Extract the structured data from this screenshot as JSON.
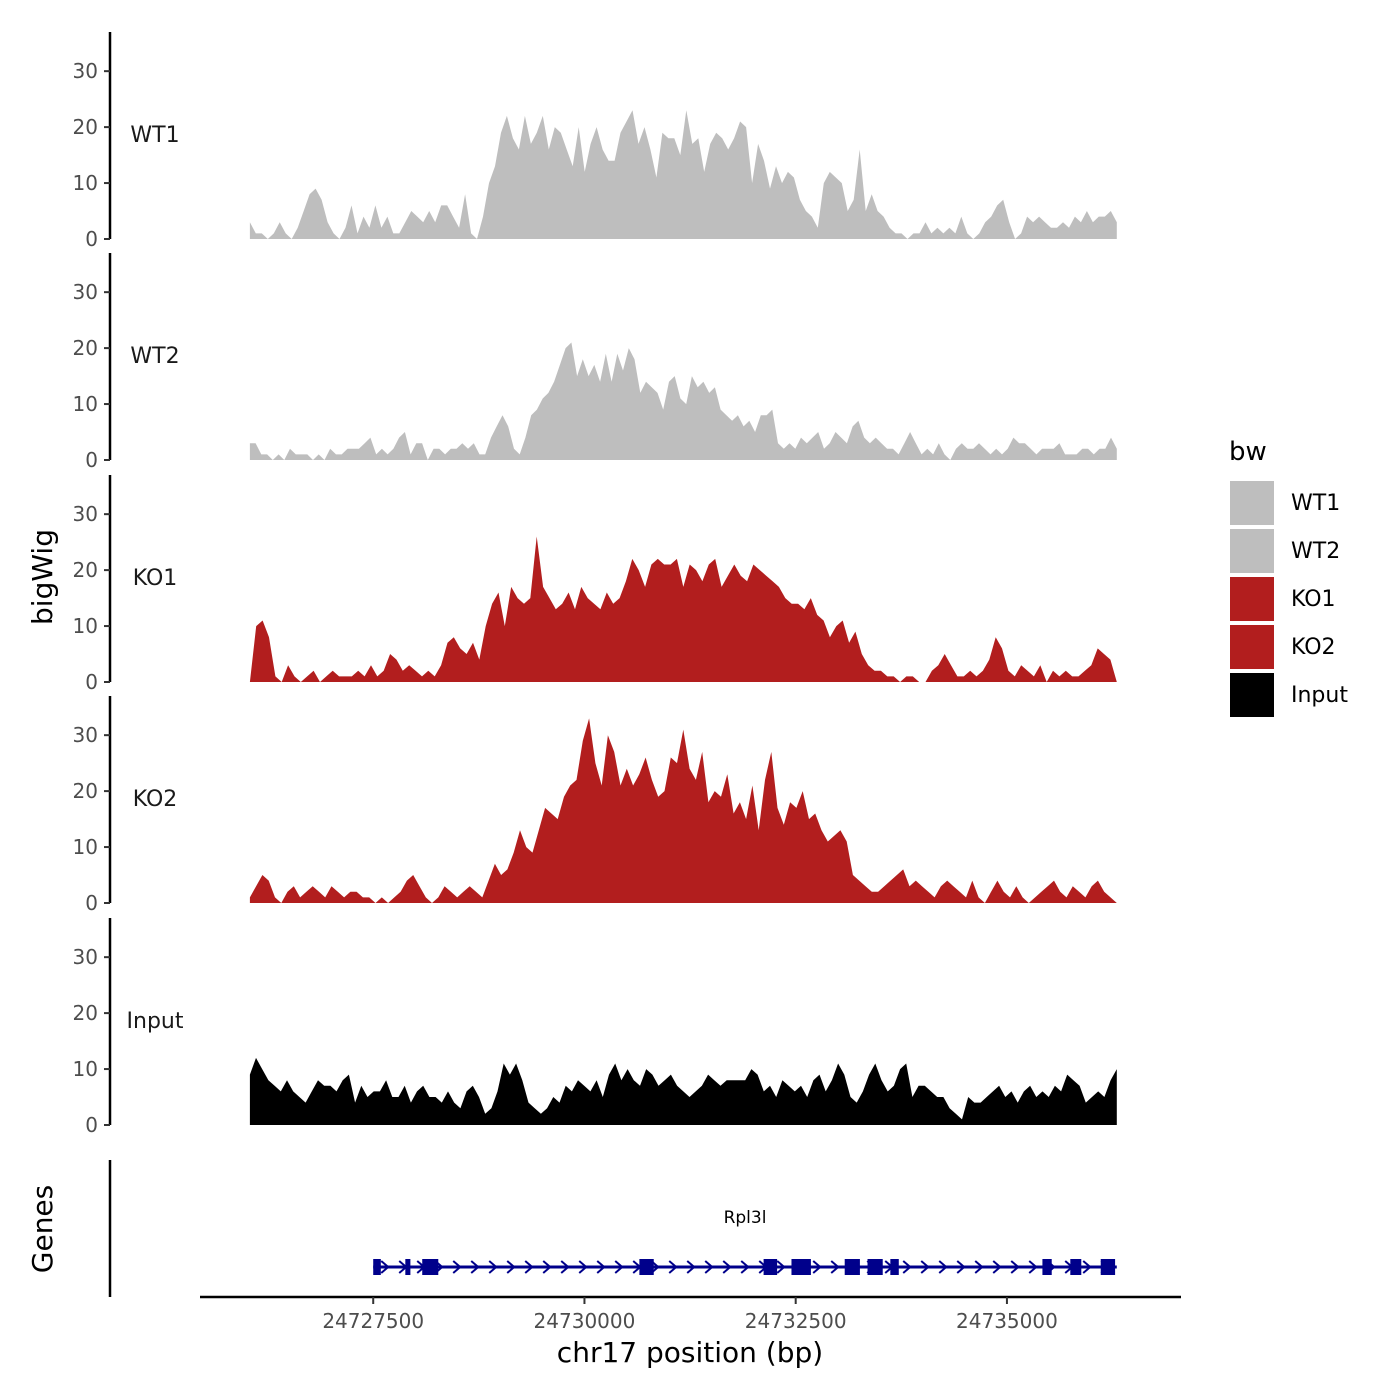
{
  "chart_data": {
    "type": "area",
    "chromosome": "chr17",
    "xlabel": "chr17 position (bp)",
    "ylabel": "bigWig",
    "xlim": [
      24725450,
      24737060
    ],
    "x_ticks": [
      24727500,
      24730000,
      24732500,
      24735000
    ],
    "x_tick_labels": [
      "24727500",
      "24730000",
      "24732500",
      "24735000"
    ],
    "ylim": [
      0,
      37
    ],
    "y_ticks": [
      0,
      10,
      20,
      30
    ],
    "y_tick_labels": [
      "0",
      "10",
      "20",
      "30"
    ],
    "track_start": 24726040,
    "track_end": 24736300,
    "legend": {
      "title": "bw",
      "position": "right",
      "entries": [
        {
          "label": "WT1",
          "color": "#bebebe"
        },
        {
          "label": "WT2",
          "color": "#bebebe"
        },
        {
          "label": "KO1",
          "color": "#b21e1e"
        },
        {
          "label": "KO2",
          "color": "#b21e1e"
        },
        {
          "label": "Input",
          "color": "#000000"
        }
      ]
    },
    "series": [
      {
        "name": "WT1",
        "color": "#bebebe",
        "values": [
          3,
          1,
          1,
          0,
          1,
          3,
          1,
          0,
          2,
          5,
          8,
          9,
          7,
          3,
          1,
          0,
          2,
          6,
          1,
          4,
          2,
          6,
          2,
          4,
          1,
          1,
          3,
          5,
          4,
          3,
          5,
          3,
          6,
          6,
          4,
          2,
          8,
          1,
          0,
          4,
          10,
          13,
          19,
          22,
          18,
          16,
          22,
          17,
          19,
          22,
          16,
          20,
          19,
          16,
          13,
          20,
          12,
          17,
          20,
          16,
          14,
          14,
          19,
          21,
          23,
          17,
          20,
          16,
          11,
          19,
          18,
          18,
          15,
          23,
          17,
          18,
          12,
          17,
          19,
          18,
          16,
          18,
          21,
          20,
          10,
          17,
          14,
          9,
          13,
          10,
          12,
          11,
          7,
          5,
          4,
          2,
          10,
          12,
          11,
          10,
          5,
          7,
          16,
          5,
          8,
          5,
          4,
          2,
          1,
          1,
          0,
          1,
          1,
          3,
          1,
          2,
          1,
          2,
          1,
          4,
          1,
          0,
          1,
          3,
          4,
          6,
          7,
          3,
          0,
          1,
          4,
          3,
          4,
          3,
          2,
          2,
          3,
          2,
          4,
          3,
          5,
          3,
          4,
          4,
          5,
          3
        ]
      },
      {
        "name": "WT2",
        "color": "#bebebe",
        "values": [
          3,
          3,
          1,
          1,
          0,
          1,
          0,
          2,
          1,
          1,
          1,
          0,
          1,
          0,
          2,
          1,
          1,
          2,
          2,
          2,
          3,
          4,
          1,
          2,
          1,
          2,
          4,
          5,
          1,
          3,
          3,
          0,
          2,
          2,
          1,
          2,
          2,
          3,
          2,
          3,
          1,
          1,
          4,
          6,
          8,
          6,
          2,
          1,
          4,
          8,
          9,
          11,
          12,
          14,
          17,
          20,
          21,
          15,
          18,
          15,
          17,
          14,
          19,
          14,
          19,
          16,
          20,
          18,
          12,
          14,
          13,
          12,
          9,
          14,
          15,
          11,
          10,
          15,
          13,
          14,
          12,
          13,
          9,
          8,
          7,
          8,
          6,
          7,
          5,
          8,
          8,
          9,
          3,
          2,
          3,
          2,
          4,
          3,
          4,
          5,
          2,
          3,
          5,
          4,
          3,
          6,
          7,
          4,
          3,
          4,
          3,
          2,
          2,
          1,
          3,
          5,
          3,
          1,
          2,
          1,
          3,
          1,
          0,
          2,
          3,
          2,
          2,
          3,
          2,
          1,
          2,
          1,
          2,
          4,
          3,
          3,
          2,
          1,
          2,
          2,
          2,
          3,
          1,
          1,
          1,
          2,
          2,
          1,
          2,
          2,
          4,
          2
        ]
      },
      {
        "name": "KO1",
        "color": "#b21e1e",
        "values": [
          0,
          10,
          11,
          8,
          1,
          0,
          3,
          1,
          0,
          1,
          2,
          0,
          1,
          2,
          1,
          1,
          1,
          2,
          1,
          3,
          1,
          2,
          5,
          4,
          2,
          3,
          2,
          1,
          2,
          1,
          3,
          7,
          8,
          6,
          5,
          7,
          4,
          10,
          14,
          16,
          10,
          17,
          15,
          14,
          15,
          26,
          17,
          15,
          13,
          14,
          16,
          13,
          17,
          15,
          14,
          13,
          16,
          14,
          15,
          18,
          22,
          20,
          17,
          21,
          22,
          21,
          21,
          22,
          17,
          21,
          20,
          18,
          21,
          22,
          17,
          19,
          21,
          19,
          18,
          21,
          20,
          19,
          18,
          17,
          15,
          14,
          14,
          13,
          15,
          12,
          11,
          8,
          10,
          11,
          7,
          9,
          5,
          3,
          2,
          2,
          1,
          1,
          0,
          1,
          1,
          0,
          0,
          2,
          3,
          5,
          3,
          1,
          1,
          2,
          1,
          2,
          4,
          8,
          6,
          2,
          1,
          3,
          2,
          1,
          3,
          0,
          2,
          1,
          2,
          1,
          1,
          2,
          3,
          6,
          5,
          4,
          0
        ]
      },
      {
        "name": "KO2",
        "color": "#b21e1e",
        "values": [
          1,
          3,
          5,
          4,
          1,
          0,
          2,
          3,
          1,
          2,
          3,
          2,
          1,
          3,
          2,
          1,
          2,
          2,
          1,
          1,
          0,
          1,
          0,
          1,
          2,
          4,
          5,
          3,
          1,
          0,
          1,
          3,
          2,
          1,
          2,
          3,
          2,
          1,
          4,
          7,
          5,
          6,
          9,
          13,
          10,
          9,
          13,
          17,
          16,
          15,
          19,
          21,
          22,
          29,
          33,
          25,
          21,
          30,
          27,
          21,
          24,
          21,
          23,
          26,
          22,
          19,
          20,
          26,
          25,
          31,
          24,
          22,
          27,
          18,
          20,
          19,
          23,
          16,
          18,
          15,
          21,
          13,
          22,
          27,
          17,
          14,
          18,
          17,
          20,
          15,
          16,
          13,
          11,
          12,
          13,
          11,
          5,
          4,
          3,
          2,
          2,
          3,
          4,
          5,
          6,
          3,
          4,
          3,
          2,
          1,
          3,
          4,
          3,
          2,
          1,
          4,
          1,
          0,
          2,
          4,
          2,
          1,
          3,
          1,
          0,
          1,
          2,
          3,
          4,
          2,
          1,
          3,
          2,
          1,
          3,
          4,
          2,
          1,
          0
        ]
      },
      {
        "name": "Input",
        "color": "#000000",
        "values": [
          9,
          12,
          10,
          8,
          7,
          6,
          8,
          6,
          5,
          4,
          6,
          8,
          7,
          7,
          6,
          8,
          9,
          4,
          7,
          5,
          6,
          6,
          8,
          5,
          5,
          7,
          4,
          6,
          7,
          5,
          5,
          4,
          6,
          4,
          3,
          6,
          7,
          5,
          2,
          3,
          6,
          11,
          9,
          11,
          8,
          4,
          3,
          2,
          3,
          5,
          4,
          7,
          6,
          8,
          7,
          6,
          8,
          5,
          9,
          11,
          8,
          10,
          8,
          7,
          10,
          9,
          7,
          8,
          9,
          7,
          6,
          5,
          6,
          7,
          9,
          8,
          7,
          8,
          8,
          8,
          8,
          10,
          9,
          6,
          7,
          5,
          8,
          7,
          6,
          7,
          5,
          8,
          9,
          6,
          8,
          11,
          9,
          5,
          4,
          6,
          9,
          11,
          8,
          6,
          7,
          10,
          11,
          5,
          7,
          7,
          6,
          5,
          5,
          3,
          2,
          1,
          5,
          4,
          4,
          5,
          6,
          7,
          5,
          6,
          4,
          6,
          7,
          5,
          6,
          5,
          7,
          6,
          9,
          8,
          7,
          4,
          5,
          6,
          5,
          8,
          10
        ]
      }
    ],
    "gene_track": {
      "label": "Genes",
      "gene_name": "Rpl3l",
      "strand": "+",
      "start": 24727500,
      "end": 24736300,
      "exons": [
        {
          "start": 24727500,
          "end": 24727590
        },
        {
          "start": 24727880,
          "end": 24727940
        },
        {
          "start": 24728080,
          "end": 24728270
        },
        {
          "start": 24730650,
          "end": 24730820
        },
        {
          "start": 24732120,
          "end": 24732280
        },
        {
          "start": 24732450,
          "end": 24732680
        },
        {
          "start": 24733080,
          "end": 24733260
        },
        {
          "start": 24733350,
          "end": 24733530
        },
        {
          "start": 24733620,
          "end": 24733720
        },
        {
          "start": 24735420,
          "end": 24735530
        },
        {
          "start": 24735750,
          "end": 24735880
        },
        {
          "start": 24736110,
          "end": 24736280
        }
      ]
    }
  }
}
